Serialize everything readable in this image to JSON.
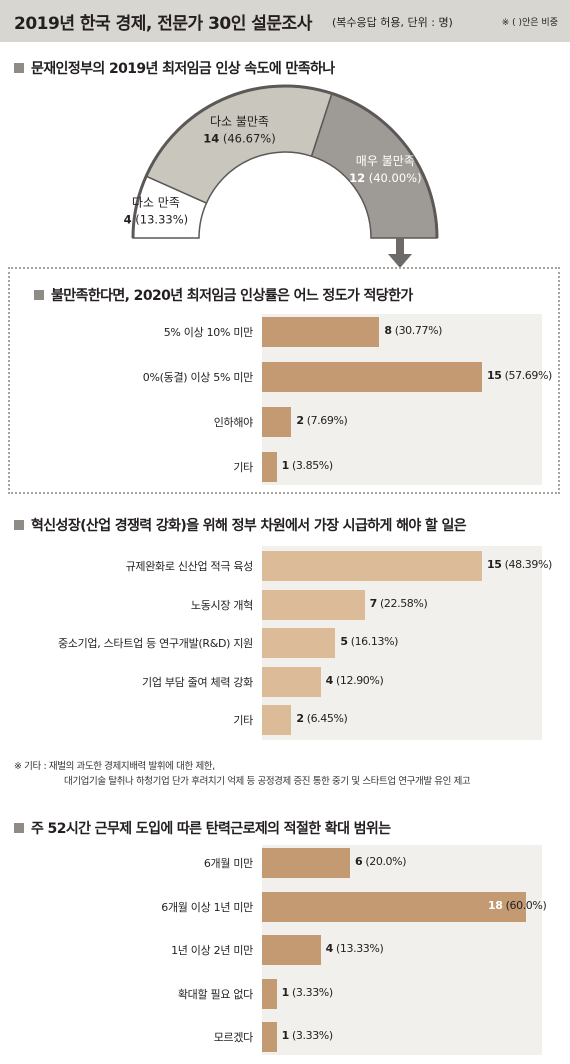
{
  "header": {
    "title": "2019년 한국 경제, 전문가 30인 설문조사",
    "subtitle": "(복수응답 허용, 단위 : 명)",
    "note": "※ (  )안은 비중"
  },
  "colors": {
    "header_bg": "#d8d6d1",
    "gauge_light": "#ffffff",
    "gauge_mid": "#c9c6bd",
    "gauge_dark": "#9e9b96",
    "gauge_border": "#5b5855",
    "bar_dark": "#c49a73",
    "bar_light": "#dcbc98",
    "panel_bg": "#f2f0ed"
  },
  "footnote": {
    "line1": "※ 기타 : 재벌의 과도한 경제지배력 발휘에 대한 제한,",
    "line2": "대기업기술 탈취나 하청기업 단가 후려치기 억제 등 공정경제 증진 통한 중기 및 스타트업 연구개발 유인 제고"
  },
  "chart_data": [
    {
      "type": "pie",
      "style": "half-donut",
      "title": "문재인정부의 2019년 최저임금 인상 속도에 만족하나",
      "categories": [
        "다소 만족",
        "다소 불만족",
        "매우 불만족"
      ],
      "values": [
        4,
        14,
        12
      ],
      "shares": [
        "13.33%",
        "46.67%",
        "40.00%"
      ]
    },
    {
      "type": "bar",
      "orientation": "horizontal",
      "title": "불만족한다면, 2020년 최저임금 인상률은 어느 정도가 적당한가",
      "categories": [
        "5% 이상 10% 미만",
        "0%(동결) 이상 5% 미만",
        "인하해야",
        "기타"
      ],
      "values": [
        8,
        15,
        2,
        1
      ],
      "shares": [
        "30.77%",
        "57.69%",
        "7.69%",
        "3.85%"
      ],
      "xlim": [
        0,
        18
      ],
      "bar_color": "#c49a73"
    },
    {
      "type": "bar",
      "orientation": "horizontal",
      "title": "혁신성장(산업 경쟁력 강화)을 위해 정부 차원에서 가장 시급하게 해야 할 일은",
      "categories": [
        "규제완화로 신산업 적극 육성",
        "노동시장 개혁",
        "중소기업, 스타트업 등 연구개발(R&D) 지원",
        "기업 부담 줄여 체력 강화",
        "기타"
      ],
      "values": [
        15,
        7,
        5,
        4,
        2
      ],
      "shares": [
        "48.39%",
        "22.58%",
        "16.13%",
        "12.90%",
        "6.45%"
      ],
      "xlim": [
        0,
        18
      ],
      "bar_color": "#dcbc98"
    },
    {
      "type": "bar",
      "orientation": "horizontal",
      "title": "주 52시간 근무제 도입에 따른 탄력근로제의 적절한 확대 범위는",
      "categories": [
        "6개월 미만",
        "6개월 이상 1년 미만",
        "1년 이상 2년 미만",
        "확대할 필요 없다",
        "모르겠다"
      ],
      "values": [
        6,
        18,
        4,
        1,
        1
      ],
      "shares": [
        "20.0%",
        "60.0%",
        "13.33%",
        "3.33%",
        "3.33%"
      ],
      "xlim": [
        0,
        18
      ],
      "bar_color": "#c49a73"
    }
  ]
}
